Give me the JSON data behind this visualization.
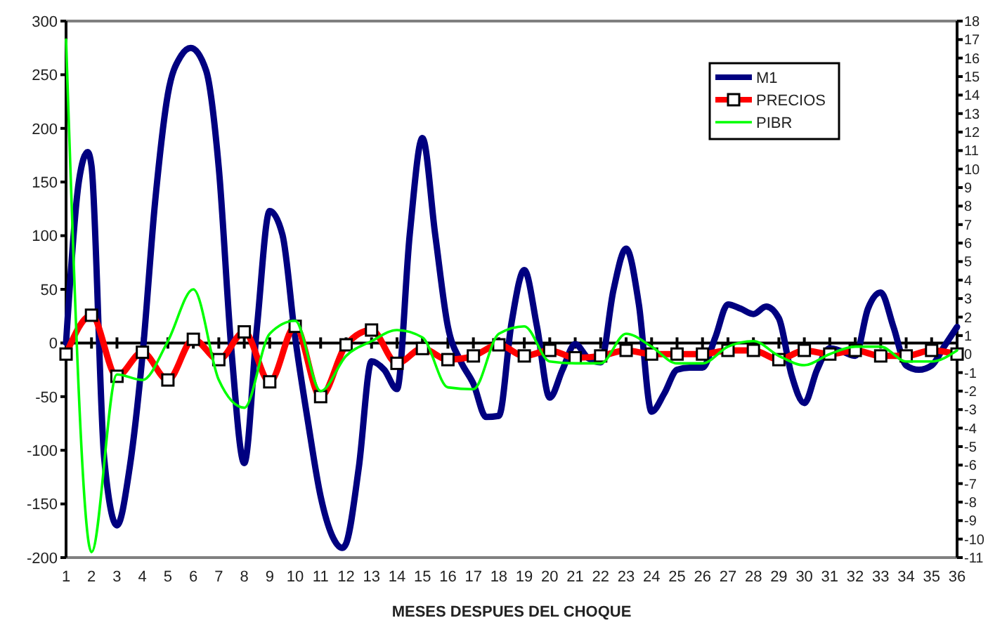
{
  "chart_data": {
    "type": "line",
    "xlabel": "MESES DESPUES DEL CHOQUE",
    "xlim": [
      1,
      36
    ],
    "xticks": [
      1,
      2,
      3,
      4,
      5,
      6,
      7,
      8,
      9,
      10,
      11,
      12,
      13,
      14,
      15,
      16,
      17,
      18,
      19,
      20,
      21,
      22,
      23,
      24,
      25,
      26,
      27,
      28,
      29,
      30,
      31,
      32,
      33,
      34,
      35,
      36
    ],
    "ylim": [
      -200,
      300
    ],
    "yticks": [
      -200,
      -150,
      -100,
      -50,
      0,
      50,
      100,
      150,
      200,
      250,
      300
    ],
    "y2lim": [
      -11,
      18
    ],
    "y2ticks": [
      -11,
      -10,
      -9,
      -8,
      -7,
      -6,
      -5,
      -4,
      -3,
      -2,
      -1,
      0,
      1,
      2,
      3,
      4,
      5,
      6,
      7,
      8,
      9,
      10,
      11,
      12,
      13,
      14,
      15,
      16,
      17,
      18
    ],
    "legend": "top right",
    "series": [
      {
        "name": "M1",
        "color": "#000080",
        "marker": "none",
        "x": [
          1,
          1.5,
          1.85,
          2,
          2.5,
          3,
          3.5,
          4,
          4.5,
          5,
          5.5,
          5.9,
          6.5,
          7,
          7.5,
          8,
          8.5,
          9,
          9.5,
          10,
          10.5,
          11,
          11.5,
          11.85,
          12,
          12.5,
          13,
          13.5,
          14,
          14.5,
          15,
          15.5,
          16,
          16.5,
          17,
          17.5,
          18,
          18.5,
          19,
          19.5,
          20,
          20.5,
          21,
          21.5,
          22,
          22.5,
          23,
          23.5,
          24,
          24.5,
          25,
          25.5,
          26,
          26.5,
          27,
          27.5,
          28,
          28.5,
          29,
          29.5,
          30,
          30.5,
          31,
          31.5,
          32,
          32.5,
          33,
          33.5,
          34,
          34.5,
          35,
          35.5,
          36
        ],
        "values": [
          0,
          150,
          178,
          165,
          -108,
          -170,
          -116,
          -12,
          132,
          232,
          267,
          275,
          254,
          163,
          -8,
          -112,
          15,
          123,
          101,
          5,
          -73,
          -143,
          -182,
          -191,
          -187,
          -116,
          -17,
          -25,
          -43,
          101,
          191,
          101,
          15,
          -17,
          -38,
          -69,
          -68,
          19,
          68,
          15,
          -51,
          -25,
          -1,
          -14,
          -18,
          49,
          88,
          36,
          -64,
          -47,
          -25,
          -23,
          -23,
          5,
          36,
          32,
          27,
          34,
          23,
          -30,
          -56,
          -25,
          -5,
          -8,
          -12,
          32,
          47,
          15,
          -21,
          -25,
          -21,
          -3,
          15
        ]
      },
      {
        "name": "PRECIOS",
        "color": "#ff0000",
        "marker": "square",
        "axis": "y2",
        "x": [
          1,
          2,
          3,
          4,
          5,
          6,
          7,
          8,
          9,
          10,
          11,
          12,
          13,
          14,
          15,
          16,
          17,
          18,
          19,
          20,
          21,
          22,
          23,
          24,
          25,
          26,
          27,
          28,
          29,
          30,
          31,
          32,
          33,
          34,
          35,
          36
        ],
        "values": [
          0.0,
          2.1,
          -1.2,
          0.1,
          -1.4,
          0.8,
          -0.3,
          1.2,
          -1.5,
          1.5,
          -2.3,
          0.5,
          1.3,
          -0.5,
          0.3,
          -0.3,
          -0.1,
          0.5,
          -0.1,
          0.2,
          -0.2,
          -0.1,
          0.2,
          0.0,
          0.0,
          0.0,
          0.2,
          0.2,
          -0.3,
          0.2,
          0.0,
          0.2,
          -0.1,
          -0.1,
          0.2,
          0.0
        ]
      },
      {
        "name": "PIBR",
        "color": "#00ff00",
        "marker": "none",
        "axis": "y2",
        "x": [
          1,
          2,
          3,
          4,
          5,
          6,
          7,
          8,
          9,
          10,
          11,
          12,
          13,
          14,
          15,
          16,
          17,
          18,
          19,
          20,
          21,
          22,
          23,
          24,
          25,
          26,
          27,
          28,
          29,
          30,
          31,
          32,
          33,
          34,
          35,
          36
        ],
        "values": [
          17.0,
          -10.7,
          -1.1,
          -1.4,
          0.7,
          3.5,
          -1.4,
          -2.9,
          1.1,
          1.8,
          -2.0,
          -0.1,
          0.7,
          1.3,
          0.9,
          -1.8,
          -1.9,
          1.1,
          1.5,
          -0.4,
          -0.5,
          -0.5,
          1.1,
          0.4,
          -0.5,
          -0.5,
          0.4,
          0.7,
          -0.1,
          -0.6,
          0.0,
          0.4,
          0.4,
          -0.4,
          -0.4,
          0.2
        ]
      }
    ]
  }
}
